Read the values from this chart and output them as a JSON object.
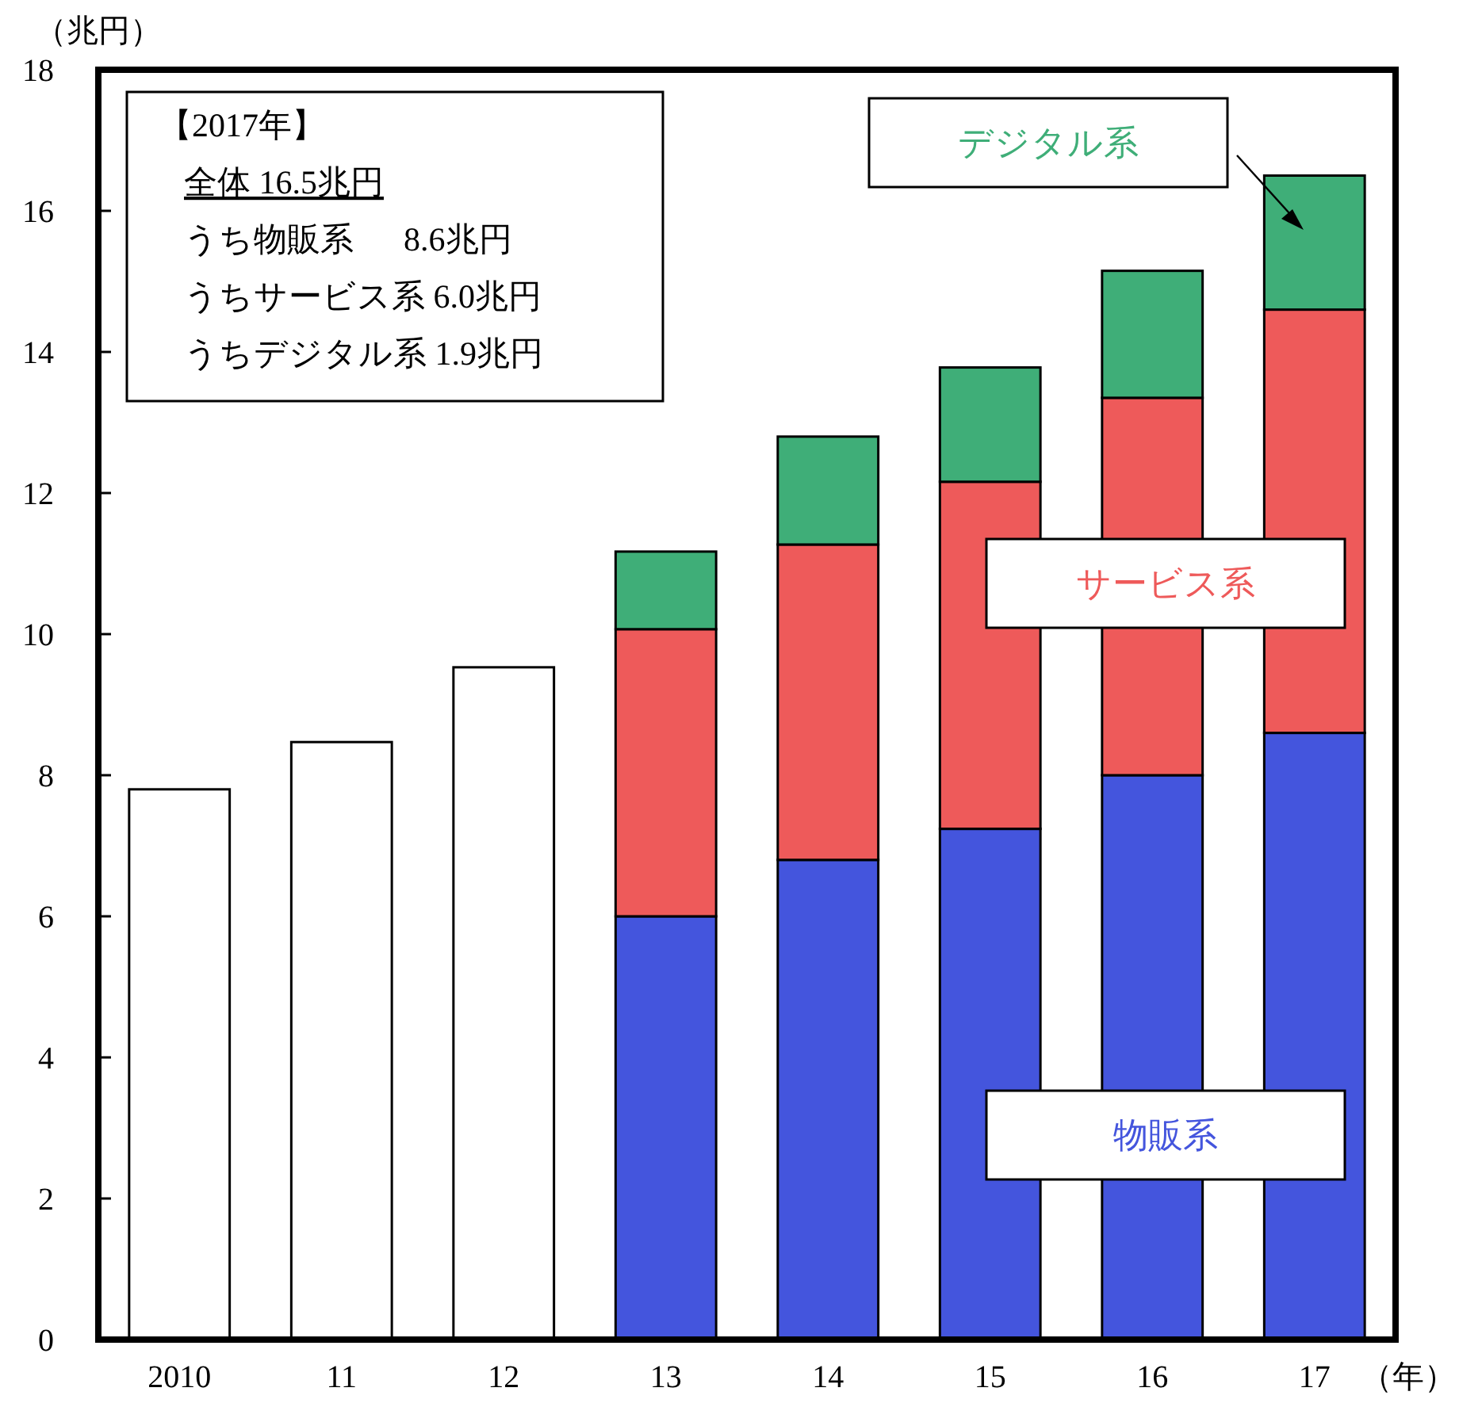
{
  "chart_data": {
    "type": "bar",
    "stacked": true,
    "ylabel": "（兆円）",
    "xlabel": "（年）",
    "categories": [
      "2010",
      "11",
      "12",
      "13",
      "14",
      "15",
      "16",
      "17"
    ],
    "series": [
      {
        "color": "#ffffff",
        "values": [
          7.8,
          8.47,
          9.53,
          null,
          null,
          null,
          null,
          null
        ]
      },
      {
        "name": "物販系",
        "color": "#4455dd",
        "values": [
          null,
          null,
          null,
          6.0,
          6.8,
          7.24,
          8.0,
          8.6
        ]
      },
      {
        "name": "サービス系",
        "color": "#ee5a5a",
        "values": [
          null,
          null,
          null,
          4.07,
          4.47,
          4.92,
          5.35,
          6.0
        ]
      },
      {
        "name": "デジタル系",
        "color": "#3fae78",
        "values": [
          null,
          null,
          null,
          1.1,
          1.53,
          1.62,
          1.8,
          1.9
        ]
      }
    ],
    "ylim": [
      0,
      18
    ],
    "yticks": [
      0,
      2,
      4,
      6,
      8,
      10,
      12,
      14,
      16,
      18
    ],
    "grid": false,
    "annotations": [
      "【2017年】",
      "全体 16.5兆円",
      "うち物販系      8.6兆円",
      "うちサービス系 6.0兆円",
      "うちデジタル系 1.9兆円"
    ]
  }
}
